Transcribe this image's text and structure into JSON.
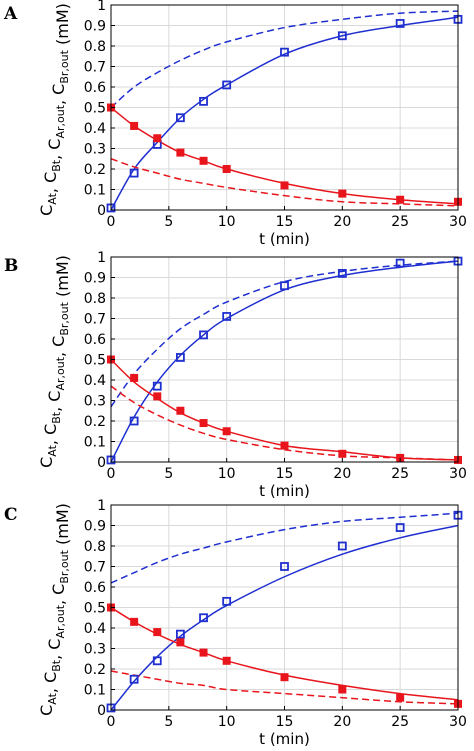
{
  "figure": {
    "ylabel": {
      "parts": [
        {
          "main": "C",
          "sub": "At"
        },
        {
          "sep": ", "
        },
        {
          "main": "C",
          "sub": "Bt"
        },
        {
          "sep": ", "
        },
        {
          "main": "C",
          "sub": "Ar,out"
        },
        {
          "sep": ", "
        },
        {
          "main": "C",
          "sub": "Br,out"
        },
        {
          "sep": " (mM)"
        }
      ]
    },
    "xlabel": "t (min)"
  },
  "colors": {
    "blue": "#1f2fd0",
    "red": "#e8161c",
    "red_marker": "#e8161c"
  },
  "chart_data": [
    {
      "type": "line",
      "panel": "A",
      "xlabel": "t (min)",
      "xlim": [
        0,
        30
      ],
      "ylim": [
        0,
        1
      ],
      "xticks": [
        0,
        5,
        10,
        15,
        20,
        25,
        30
      ],
      "yticks": [
        0,
        0.1,
        0.2,
        0.3,
        0.4,
        0.5,
        0.6,
        0.7,
        0.8,
        0.9,
        1
      ],
      "grid": true,
      "series": [
        {
          "color": "blue",
          "style": "dashed",
          "x": [
            0,
            2,
            4,
            6,
            8,
            10,
            15,
            20,
            25,
            30
          ],
          "y": [
            0.5,
            0.6,
            0.67,
            0.73,
            0.78,
            0.82,
            0.89,
            0.93,
            0.96,
            0.97
          ]
        },
        {
          "color": "blue",
          "style": "solid",
          "x": [
            0,
            2,
            4,
            6,
            8,
            10,
            15,
            20,
            25,
            30
          ],
          "y": [
            0,
            0.2,
            0.33,
            0.45,
            0.54,
            0.61,
            0.76,
            0.85,
            0.9,
            0.94
          ]
        },
        {
          "color": "blue",
          "style": "open-square",
          "x": [
            0,
            2,
            4,
            6,
            8,
            10,
            15,
            20,
            25,
            30
          ],
          "y": [
            0.01,
            0.18,
            0.32,
            0.45,
            0.53,
            0.61,
            0.77,
            0.85,
            0.91,
            0.93
          ]
        },
        {
          "color": "red",
          "style": "solid",
          "x": [
            0,
            2,
            4,
            6,
            8,
            10,
            15,
            20,
            25,
            30
          ],
          "y": [
            0.5,
            0.41,
            0.34,
            0.28,
            0.24,
            0.2,
            0.13,
            0.08,
            0.05,
            0.03
          ]
        },
        {
          "color": "red",
          "style": "dashed",
          "x": [
            0,
            2,
            4,
            6,
            8,
            10,
            15,
            20,
            25,
            30
          ],
          "y": [
            0.25,
            0.21,
            0.18,
            0.15,
            0.13,
            0.11,
            0.07,
            0.04,
            0.03,
            0.02
          ]
        },
        {
          "color": "red",
          "style": "filled-square",
          "x": [
            0,
            2,
            4,
            6,
            8,
            10,
            15,
            20,
            25,
            30
          ],
          "y": [
            0.5,
            0.41,
            0.35,
            0.28,
            0.24,
            0.2,
            0.12,
            0.08,
            0.05,
            0.04
          ]
        }
      ]
    },
    {
      "type": "line",
      "panel": "B",
      "xlabel": "t (min)",
      "xlim": [
        0,
        30
      ],
      "ylim": [
        0,
        1
      ],
      "xticks": [
        0,
        5,
        10,
        15,
        20,
        25,
        30
      ],
      "yticks": [
        0,
        0.1,
        0.2,
        0.3,
        0.4,
        0.5,
        0.6,
        0.7,
        0.8,
        0.9,
        1
      ],
      "grid": true,
      "series": [
        {
          "color": "blue",
          "style": "dashed",
          "x": [
            0,
            2,
            4,
            6,
            8,
            10,
            15,
            20,
            25,
            30
          ],
          "y": [
            0.27,
            0.43,
            0.55,
            0.65,
            0.72,
            0.78,
            0.88,
            0.93,
            0.96,
            0.98
          ]
        },
        {
          "color": "blue",
          "style": "solid",
          "x": [
            0,
            2,
            4,
            6,
            8,
            10,
            15,
            20,
            25,
            30
          ],
          "y": [
            0,
            0.22,
            0.39,
            0.52,
            0.62,
            0.7,
            0.84,
            0.91,
            0.95,
            0.98
          ]
        },
        {
          "color": "blue",
          "style": "open-square",
          "x": [
            0,
            2,
            4,
            6,
            8,
            10,
            15,
            20,
            25,
            30
          ],
          "y": [
            0.01,
            0.2,
            0.37,
            0.51,
            0.62,
            0.71,
            0.86,
            0.92,
            0.97,
            0.98
          ]
        },
        {
          "color": "red",
          "style": "solid",
          "x": [
            0,
            2,
            4,
            6,
            8,
            10,
            15,
            20,
            25,
            30
          ],
          "y": [
            0.5,
            0.39,
            0.31,
            0.24,
            0.19,
            0.15,
            0.08,
            0.05,
            0.02,
            0.01
          ]
        },
        {
          "color": "red",
          "style": "dashed",
          "x": [
            0,
            2,
            4,
            6,
            8,
            10,
            15,
            20,
            25,
            30
          ],
          "y": [
            0.37,
            0.29,
            0.23,
            0.18,
            0.14,
            0.11,
            0.06,
            0.03,
            0.02,
            0.01
          ]
        },
        {
          "color": "red",
          "style": "filled-square",
          "x": [
            0,
            2,
            4,
            6,
            8,
            10,
            15,
            20,
            25,
            30
          ],
          "y": [
            0.5,
            0.41,
            0.32,
            0.25,
            0.19,
            0.15,
            0.08,
            0.04,
            0.02,
            0.01
          ]
        }
      ]
    },
    {
      "type": "line",
      "panel": "C",
      "xlabel": "t (min)",
      "xlim": [
        0,
        30
      ],
      "ylim": [
        0,
        1
      ],
      "xticks": [
        0,
        5,
        10,
        15,
        20,
        25,
        30
      ],
      "yticks": [
        0,
        0.1,
        0.2,
        0.3,
        0.4,
        0.5,
        0.6,
        0.7,
        0.8,
        0.9,
        1
      ],
      "grid": true,
      "series": [
        {
          "color": "blue",
          "style": "dashed",
          "x": [
            0,
            2,
            4,
            6,
            8,
            10,
            15,
            20,
            25,
            30
          ],
          "y": [
            0.62,
            0.67,
            0.72,
            0.76,
            0.79,
            0.82,
            0.88,
            0.92,
            0.94,
            0.96
          ]
        },
        {
          "color": "blue",
          "style": "solid",
          "x": [
            0,
            2,
            4,
            6,
            8,
            10,
            15,
            20,
            25,
            30
          ],
          "y": [
            0,
            0.14,
            0.26,
            0.36,
            0.44,
            0.51,
            0.65,
            0.76,
            0.84,
            0.9
          ]
        },
        {
          "color": "blue",
          "style": "open-square",
          "x": [
            0,
            2,
            4,
            6,
            8,
            10,
            15,
            20,
            25,
            30
          ],
          "y": [
            0.01,
            0.15,
            0.24,
            0.37,
            0.45,
            0.53,
            0.7,
            0.8,
            0.89,
            0.95
          ]
        },
        {
          "color": "red",
          "style": "solid",
          "x": [
            0,
            2,
            4,
            6,
            8,
            10,
            15,
            20,
            25,
            30
          ],
          "y": [
            0.5,
            0.43,
            0.37,
            0.32,
            0.28,
            0.24,
            0.17,
            0.12,
            0.08,
            0.05
          ]
        },
        {
          "color": "red",
          "style": "dashed",
          "x": [
            0,
            2,
            4,
            6,
            8,
            10,
            15,
            20,
            25,
            30
          ],
          "y": [
            0.19,
            0.17,
            0.15,
            0.13,
            0.12,
            0.1,
            0.08,
            0.06,
            0.04,
            0.03
          ]
        },
        {
          "color": "red",
          "style": "filled-square",
          "x": [
            0,
            2,
            4,
            6,
            8,
            10,
            15,
            20,
            25,
            30
          ],
          "y": [
            0.5,
            0.43,
            0.38,
            0.33,
            0.28,
            0.24,
            0.16,
            0.1,
            0.06,
            0.03
          ]
        }
      ]
    }
  ]
}
